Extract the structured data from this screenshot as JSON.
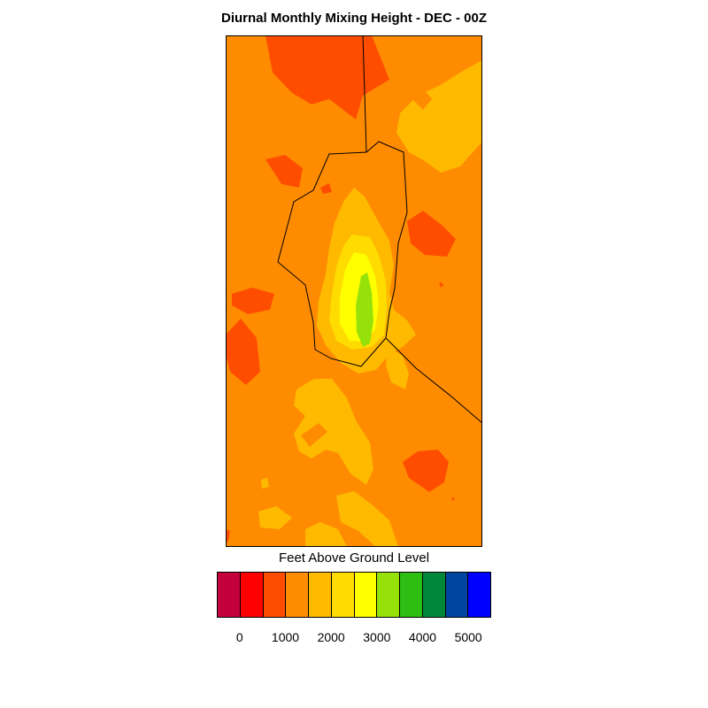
{
  "title": "Diurnal Monthly Mixing Height - DEC - 00Z",
  "legend": {
    "title": "Feet Above Ground Level",
    "colors": [
      "#c4003c",
      "#ff0000",
      "#ff4d00",
      "#ff8c00",
      "#ffba00",
      "#ffdc00",
      "#ffff00",
      "#96e10a",
      "#2dbe14",
      "#00873c",
      "#0046a0",
      "#0000ff"
    ],
    "tick_labels": [
      "0",
      "1000",
      "2000",
      "3000",
      "4000",
      "5000"
    ]
  },
  "contour_palette": {
    "background": "#ff8c00",
    "low": "#ff4d00",
    "mid": "#ffba00",
    "upper": "#ffdc00",
    "high": "#ffff00",
    "peak": "#96e10a",
    "border": "#000000"
  }
}
